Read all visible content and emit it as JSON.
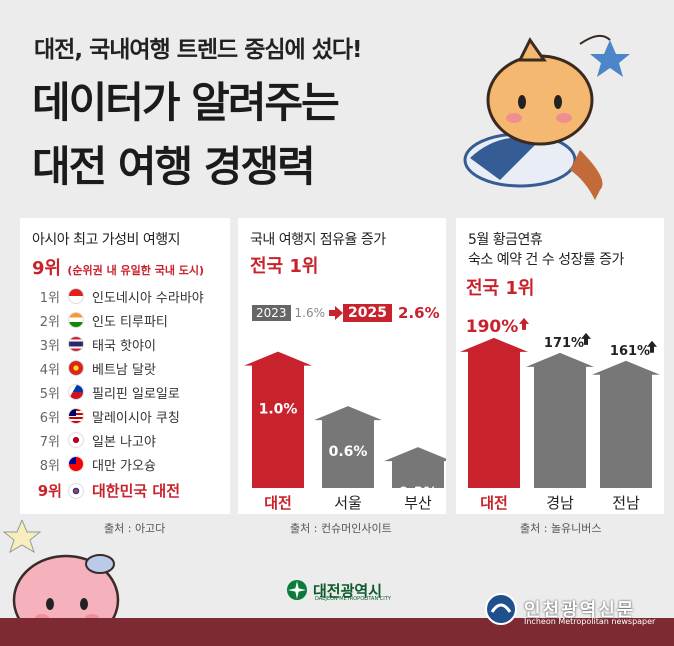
{
  "header": {
    "subtitle": "대전, 국내여행 트렌드 중심에 섰다!",
    "title_line1": "데이터가 알려주는",
    "title_line2": "대전 여행 경쟁력"
  },
  "panel1": {
    "title": "아시아 최고 가성비 여행지",
    "rank_big": "9위",
    "rank_note": "(순위권 내 유일한 국내 도시)",
    "rows": [
      {
        "num": "1위",
        "name": "인도네시아 수라바야",
        "flag": "indonesia-flag-icon"
      },
      {
        "num": "2위",
        "name": "인도 티루파티",
        "flag": "india-flag-icon"
      },
      {
        "num": "3위",
        "name": "태국 핫야이",
        "flag": "thailand-flag-icon"
      },
      {
        "num": "4위",
        "name": "베트남 달랏",
        "flag": "vietnam-flag-icon"
      },
      {
        "num": "5위",
        "name": "필리핀 일로일로",
        "flag": "philippines-flag-icon"
      },
      {
        "num": "6위",
        "name": "말레이시아 쿠칭",
        "flag": "malaysia-flag-icon"
      },
      {
        "num": "7위",
        "name": "일본 나고야",
        "flag": "japan-flag-icon"
      },
      {
        "num": "8위",
        "name": "대만 가오슝",
        "flag": "taiwan-flag-icon"
      }
    ],
    "last_num": "9위",
    "last_name": "대한민국 대전",
    "source": "출처 : 아고다"
  },
  "panel2": {
    "title": "국내 여행지 점유율 증가",
    "rank": "전국 1위",
    "year_from": "2023",
    "year_from_val": "1.6%",
    "year_to": "2025",
    "year_to_val": "2.6%",
    "source": "출처 : 컨슈머인사이트"
  },
  "panel3": {
    "title_line1": "5월 황금연휴",
    "title_line2": "숙소 예약 건 수 성장률 증가",
    "rank": "전국 1위",
    "source": "출처 : 놀유니버스"
  },
  "logos": {
    "daejeon": "대전광역시",
    "daejeon_en": "DAEJEON METROPOLITAN CITY",
    "incheon": "인천광역신문",
    "incheon_en": "Incheon Metropolitan newspaper"
  },
  "colors": {
    "accent": "#c8232c",
    "bar_gray": "#777777",
    "footer": "#7d2a32"
  },
  "chart_data": [
    {
      "type": "bar",
      "title": "국내 여행지 점유율 증가",
      "categories": [
        "대전",
        "서울",
        "부산"
      ],
      "values": [
        1.0,
        0.6,
        0.3
      ],
      "labels": [
        "1.0%",
        "0.6%",
        "0.3%"
      ],
      "ylim": [
        0,
        1.1
      ]
    },
    {
      "type": "bar",
      "title": "5월 황금연휴 숙소 예약 건 수 성장률 증가",
      "categories": [
        "대전",
        "경남",
        "전남"
      ],
      "values": [
        190,
        171,
        161
      ],
      "labels": [
        "190%",
        "171%",
        "161%"
      ],
      "ylim": [
        0,
        200
      ]
    }
  ]
}
